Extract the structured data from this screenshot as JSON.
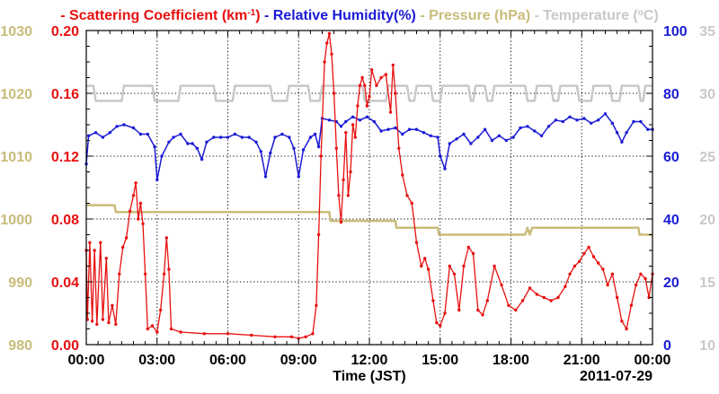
{
  "chart_data": {
    "type": "line",
    "date_label": "2011-07-29",
    "xlabel": "Time (JST)",
    "x_ticks": [
      "00:00",
      "03:00",
      "06:00",
      "09:00",
      "12:00",
      "15:00",
      "18:00",
      "21:00",
      "00:00"
    ],
    "xlim_hours": [
      0,
      24
    ],
    "colors": {
      "scattering": "#e81010",
      "humidity": "#1a1ad6",
      "pressure": "#c8bc7a",
      "temperature": "#c8c8c8"
    },
    "legend": [
      {
        "key": "scattering",
        "dash": "-",
        "prefix": "Scattering Coefficient (km",
        "sup": "-1",
        "suffix": ")"
      },
      {
        "key": "humidity",
        "dash": "-",
        "prefix": "Relative Humidity(%)",
        "sup": "",
        "suffix": ""
      },
      {
        "key": "pressure",
        "dash": "-",
        "prefix": "Pressure (hPa)",
        "sup": "",
        "suffix": ""
      },
      {
        "key": "temperature",
        "dash": "-",
        "prefix": "Temperature (",
        "sup": "o",
        "suffix": "C)"
      }
    ],
    "axes": {
      "scattering": {
        "side": "left-inner",
        "min": 0,
        "max": 0.2,
        "ticks": [
          "0.00",
          "0.04",
          "0.08",
          "0.12",
          "0.16",
          "0.20"
        ]
      },
      "pressure": {
        "side": "left-outer",
        "min": 980,
        "max": 1030,
        "ticks": [
          "980",
          "990",
          "1000",
          "1010",
          "1020",
          "1030"
        ]
      },
      "humidity": {
        "side": "right-inner",
        "min": 0,
        "max": 100,
        "ticks": [
          "0",
          "20",
          "40",
          "60",
          "80",
          "100"
        ]
      },
      "temperature": {
        "side": "right-outer",
        "min": 10,
        "max": 35,
        "ticks": [
          "10",
          "15",
          "20",
          "25",
          "30",
          "35"
        ]
      }
    },
    "series": {
      "temperature": [
        [
          0,
          30.6
        ],
        [
          0.3,
          30.6
        ],
        [
          0.4,
          29.4
        ],
        [
          1.5,
          29.4
        ],
        [
          1.6,
          30.6
        ],
        [
          2.8,
          30.6
        ],
        [
          2.9,
          29.4
        ],
        [
          3.9,
          29.4
        ],
        [
          4.0,
          30.6
        ],
        [
          5.4,
          30.6
        ],
        [
          5.5,
          29.4
        ],
        [
          6.2,
          29.4
        ],
        [
          6.3,
          30.6
        ],
        [
          7.8,
          30.6
        ],
        [
          7.9,
          29.4
        ],
        [
          8.5,
          29.4
        ],
        [
          8.6,
          30.6
        ],
        [
          9.4,
          30.6
        ],
        [
          9.5,
          29.4
        ],
        [
          9.9,
          29.4
        ],
        [
          10.0,
          30.6
        ],
        [
          11.7,
          30.6
        ],
        [
          11.8,
          29.4
        ],
        [
          12.7,
          29.4
        ],
        [
          12.8,
          30.6
        ],
        [
          13.6,
          30.6
        ],
        [
          13.7,
          29.4
        ],
        [
          13.9,
          29.4
        ],
        [
          14.0,
          30.6
        ],
        [
          14.6,
          30.6
        ],
        [
          14.7,
          29.4
        ],
        [
          15.0,
          29.4
        ],
        [
          15.1,
          30.6
        ],
        [
          16.2,
          30.6
        ],
        [
          16.3,
          29.4
        ],
        [
          16.4,
          29.4
        ],
        [
          16.5,
          30.6
        ],
        [
          16.9,
          30.6
        ],
        [
          17.0,
          29.4
        ],
        [
          17.2,
          29.4
        ],
        [
          17.3,
          30.6
        ],
        [
          18.6,
          30.6
        ],
        [
          18.7,
          29.4
        ],
        [
          19.0,
          29.4
        ],
        [
          19.1,
          30.6
        ],
        [
          19.7,
          30.6
        ],
        [
          19.8,
          29.4
        ],
        [
          20.0,
          29.4
        ],
        [
          20.1,
          30.6
        ],
        [
          20.8,
          30.6
        ],
        [
          20.9,
          29.4
        ],
        [
          21.4,
          29.4
        ],
        [
          21.5,
          30.6
        ],
        [
          22.2,
          30.6
        ],
        [
          22.3,
          29.4
        ],
        [
          22.6,
          29.4
        ],
        [
          22.7,
          30.6
        ],
        [
          23.4,
          30.6
        ],
        [
          23.5,
          29.4
        ],
        [
          23.6,
          29.4
        ],
        [
          23.7,
          30.6
        ],
        [
          24.0,
          30.6
        ]
      ],
      "pressure": [
        [
          0,
          1002.2
        ],
        [
          1.2,
          1002.2
        ],
        [
          1.25,
          1001.1
        ],
        [
          10.3,
          1001.1
        ],
        [
          10.35,
          999.7
        ],
        [
          13.1,
          999.7
        ],
        [
          13.15,
          998.6
        ],
        [
          14.9,
          998.6
        ],
        [
          14.95,
          997.5
        ],
        [
          18.6,
          997.5
        ],
        [
          18.7,
          998.6
        ],
        [
          18.8,
          997.5
        ],
        [
          18.9,
          998.6
        ],
        [
          23.4,
          998.6
        ],
        [
          23.45,
          997.5
        ],
        [
          24,
          997.5
        ]
      ],
      "humidity": [
        [
          0,
          57.5
        ],
        [
          0.1,
          66.5
        ],
        [
          0.4,
          67.5
        ],
        [
          0.7,
          66
        ],
        [
          1.0,
          67.5
        ],
        [
          1.3,
          69.5
        ],
        [
          1.6,
          70
        ],
        [
          2.0,
          69
        ],
        [
          2.3,
          67
        ],
        [
          2.6,
          67
        ],
        [
          2.9,
          63
        ],
        [
          3.0,
          52.5
        ],
        [
          3.2,
          60
        ],
        [
          3.5,
          64.5
        ],
        [
          3.7,
          66
        ],
        [
          4.0,
          67
        ],
        [
          4.3,
          64
        ],
        [
          4.5,
          64
        ],
        [
          4.7,
          62.5
        ],
        [
          4.9,
          59
        ],
        [
          5.1,
          64.5
        ],
        [
          5.4,
          66
        ],
        [
          5.7,
          66
        ],
        [
          6.0,
          66
        ],
        [
          6.3,
          67
        ],
        [
          6.6,
          66
        ],
        [
          6.9,
          66
        ],
        [
          7.2,
          64.5
        ],
        [
          7.4,
          61.5
        ],
        [
          7.6,
          53.5
        ],
        [
          7.8,
          61
        ],
        [
          8.0,
          66
        ],
        [
          8.3,
          67
        ],
        [
          8.6,
          66
        ],
        [
          8.8,
          62.5
        ],
        [
          9.0,
          53.5
        ],
        [
          9.2,
          62
        ],
        [
          9.5,
          66
        ],
        [
          9.7,
          67
        ],
        [
          9.85,
          63
        ],
        [
          10.0,
          72
        ],
        [
          10.3,
          71.5
        ],
        [
          10.6,
          71
        ],
        [
          10.8,
          69.5
        ],
        [
          11.0,
          71
        ],
        [
          11.3,
          72.5
        ],
        [
          11.6,
          71.5
        ],
        [
          11.9,
          72.5
        ],
        [
          12.2,
          71
        ],
        [
          12.5,
          68
        ],
        [
          12.8,
          68.5
        ],
        [
          13.1,
          69
        ],
        [
          13.4,
          67
        ],
        [
          13.7,
          68.5
        ],
        [
          14.0,
          68.5
        ],
        [
          14.3,
          67.5
        ],
        [
          14.6,
          66.5
        ],
        [
          14.9,
          66
        ],
        [
          15.0,
          60
        ],
        [
          15.2,
          56
        ],
        [
          15.4,
          64
        ],
        [
          15.7,
          65.5
        ],
        [
          16.0,
          67
        ],
        [
          16.3,
          64
        ],
        [
          16.6,
          66
        ],
        [
          16.9,
          68.5
        ],
        [
          17.2,
          65
        ],
        [
          17.5,
          66.5
        ],
        [
          17.8,
          65
        ],
        [
          18.1,
          66
        ],
        [
          18.4,
          69
        ],
        [
          18.7,
          69.5
        ],
        [
          19.0,
          68
        ],
        [
          19.3,
          66.5
        ],
        [
          19.6,
          69.5
        ],
        [
          19.9,
          71.5
        ],
        [
          20.2,
          71
        ],
        [
          20.5,
          72.5
        ],
        [
          20.8,
          71.5
        ],
        [
          21.1,
          72
        ],
        [
          21.4,
          70.5
        ],
        [
          21.7,
          71.5
        ],
        [
          22.0,
          73.5
        ],
        [
          22.3,
          70.5
        ],
        [
          22.5,
          67.5
        ],
        [
          22.7,
          64.5
        ],
        [
          22.9,
          67.5
        ],
        [
          23.2,
          71
        ],
        [
          23.5,
          71
        ],
        [
          23.8,
          68.5
        ],
        [
          24.0,
          68.5
        ]
      ],
      "scattering": [
        [
          0,
          0.06
        ],
        [
          0.05,
          0.016
        ],
        [
          0.15,
          0.065
        ],
        [
          0.25,
          0.015
        ],
        [
          0.35,
          0.06
        ],
        [
          0.45,
          0.013
        ],
        [
          0.6,
          0.065
        ],
        [
          0.7,
          0.016
        ],
        [
          0.85,
          0.055
        ],
        [
          0.95,
          0.014
        ],
        [
          1.1,
          0.025
        ],
        [
          1.25,
          0.013
        ],
        [
          1.4,
          0.045
        ],
        [
          1.55,
          0.062
        ],
        [
          1.7,
          0.068
        ],
        [
          1.85,
          0.085
        ],
        [
          2.0,
          0.095
        ],
        [
          2.1,
          0.103
        ],
        [
          2.2,
          0.08
        ],
        [
          2.3,
          0.09
        ],
        [
          2.4,
          0.077
        ],
        [
          2.5,
          0.045
        ],
        [
          2.6,
          0.01
        ],
        [
          2.8,
          0.012
        ],
        [
          3.0,
          0.008
        ],
        [
          3.15,
          0.022
        ],
        [
          3.3,
          0.045
        ],
        [
          3.4,
          0.068
        ],
        [
          3.5,
          0.048
        ],
        [
          3.6,
          0.01
        ],
        [
          4.0,
          0.008
        ],
        [
          5.0,
          0.007
        ],
        [
          6.0,
          0.007
        ],
        [
          7.0,
          0.006
        ],
        [
          8.0,
          0.005
        ],
        [
          8.7,
          0.005
        ],
        [
          9.0,
          0.004
        ],
        [
          9.3,
          0.005
        ],
        [
          9.6,
          0.007
        ],
        [
          9.75,
          0.025
        ],
        [
          9.85,
          0.07
        ],
        [
          9.95,
          0.12
        ],
        [
          10.1,
          0.18
        ],
        [
          10.2,
          0.192
        ],
        [
          10.3,
          0.198
        ],
        [
          10.4,
          0.185
        ],
        [
          10.5,
          0.16
        ],
        [
          10.6,
          0.125
        ],
        [
          10.7,
          0.095
        ],
        [
          10.8,
          0.078
        ],
        [
          10.9,
          0.105
        ],
        [
          11.0,
          0.135
        ],
        [
          11.1,
          0.095
        ],
        [
          11.2,
          0.11
        ],
        [
          11.3,
          0.14
        ],
        [
          11.4,
          0.132
        ],
        [
          11.5,
          0.152
        ],
        [
          11.6,
          0.165
        ],
        [
          11.7,
          0.17
        ],
        [
          11.8,
          0.165
        ],
        [
          11.9,
          0.152
        ],
        [
          12.0,
          0.158
        ],
        [
          12.1,
          0.175
        ],
        [
          12.3,
          0.165
        ],
        [
          12.5,
          0.17
        ],
        [
          12.7,
          0.172
        ],
        [
          12.9,
          0.148
        ],
        [
          13.0,
          0.178
        ],
        [
          13.1,
          0.16
        ],
        [
          13.25,
          0.125
        ],
        [
          13.4,
          0.108
        ],
        [
          13.6,
          0.095
        ],
        [
          13.8,
          0.09
        ],
        [
          14.0,
          0.065
        ],
        [
          14.2,
          0.05
        ],
        [
          14.35,
          0.055
        ],
        [
          14.5,
          0.048
        ],
        [
          14.7,
          0.028
        ],
        [
          14.85,
          0.014
        ],
        [
          15.0,
          0.012
        ],
        [
          15.2,
          0.02
        ],
        [
          15.4,
          0.05
        ],
        [
          15.6,
          0.045
        ],
        [
          15.8,
          0.022
        ],
        [
          16.0,
          0.05
        ],
        [
          16.2,
          0.062
        ],
        [
          16.4,
          0.058
        ],
        [
          16.6,
          0.022
        ],
        [
          16.8,
          0.019
        ],
        [
          17.0,
          0.028
        ],
        [
          17.3,
          0.05
        ],
        [
          17.6,
          0.038
        ],
        [
          17.9,
          0.025
        ],
        [
          18.2,
          0.022
        ],
        [
          18.5,
          0.028
        ],
        [
          18.8,
          0.036
        ],
        [
          19.1,
          0.032
        ],
        [
          19.4,
          0.03
        ],
        [
          19.7,
          0.028
        ],
        [
          20.0,
          0.03
        ],
        [
          20.3,
          0.037
        ],
        [
          20.5,
          0.045
        ],
        [
          20.7,
          0.05
        ],
        [
          20.9,
          0.053
        ],
        [
          21.1,
          0.058
        ],
        [
          21.3,
          0.062
        ],
        [
          21.5,
          0.056
        ],
        [
          21.7,
          0.052
        ],
        [
          21.9,
          0.048
        ],
        [
          22.1,
          0.038
        ],
        [
          22.3,
          0.045
        ],
        [
          22.5,
          0.03
        ],
        [
          22.7,
          0.015
        ],
        [
          22.9,
          0.01
        ],
        [
          23.1,
          0.025
        ],
        [
          23.3,
          0.038
        ],
        [
          23.5,
          0.045
        ],
        [
          23.7,
          0.042
        ],
        [
          23.85,
          0.03
        ],
        [
          24.0,
          0.045
        ]
      ]
    }
  }
}
